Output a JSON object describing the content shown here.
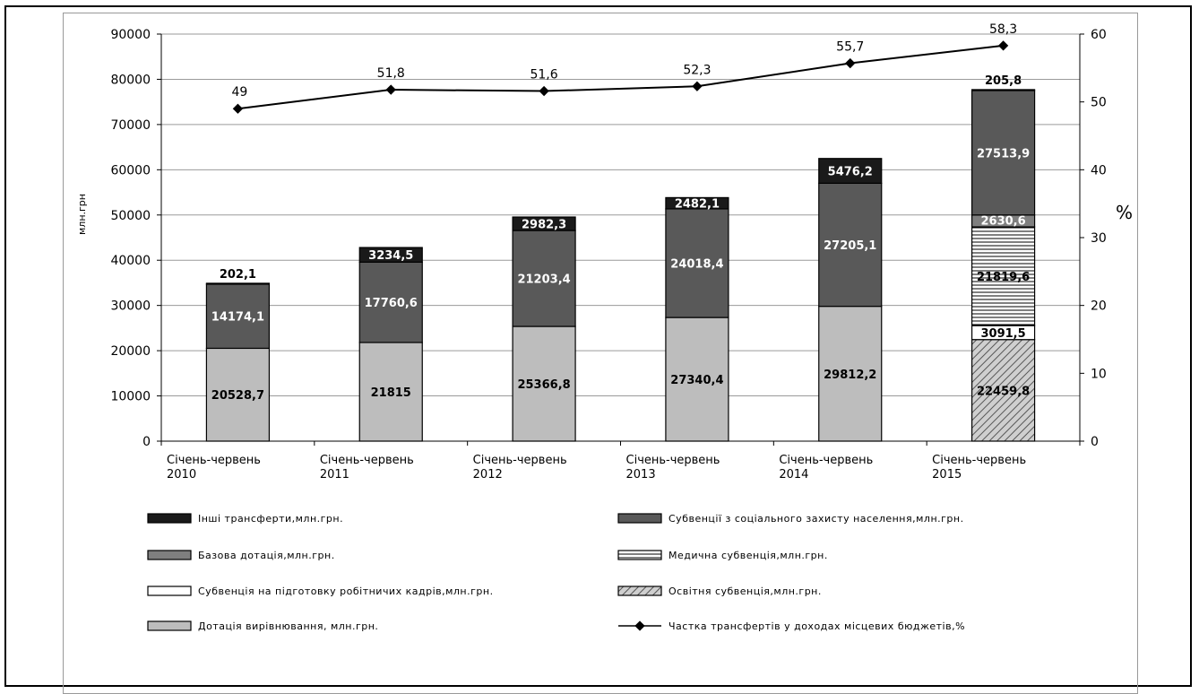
{
  "chart_data": {
    "type": "bar",
    "stacked": true,
    "ylabel": "млн.грн",
    "y2label": "%",
    "ylim": [
      0,
      90000
    ],
    "y2lim": [
      0,
      60
    ],
    "yticks": [
      "0",
      "10000",
      "20000",
      "30000",
      "40000",
      "50000",
      "60000",
      "70000",
      "80000",
      "90000"
    ],
    "y2ticks": [
      "0",
      "10",
      "20",
      "30",
      "40",
      "50",
      "60"
    ],
    "categories": [
      [
        "Січень-червень",
        "2010"
      ],
      [
        "Січень-червень",
        "2011"
      ],
      [
        "Січень-червень",
        "2012"
      ],
      [
        "Січень-червень",
        "2013"
      ],
      [
        "Січень-червень",
        "2014"
      ],
      [
        "Січень-червень",
        "2015"
      ]
    ],
    "series": [
      {
        "name": "Дотація вирівнювання, млн.грн.",
        "key": "equalization",
        "color": "#bdbdbd",
        "values": [
          20528.7,
          21815,
          25366.8,
          27340.4,
          29812.2,
          null
        ],
        "labels": [
          "20528,7",
          "21815",
          "25366,8",
          "27340,4",
          "29812,2",
          ""
        ]
      },
      {
        "name": "Освітня субвенція,млн.грн.",
        "key": "education",
        "color": "#bdbdbd",
        "pattern": "hatch",
        "values": [
          null,
          null,
          null,
          null,
          null,
          22459.8
        ],
        "labels": [
          "",
          "",
          "",
          "",
          "",
          "22459,8"
        ]
      },
      {
        "name": "Субвенція на підготовку робітничих кадрів,млн.грн.",
        "key": "workers",
        "color": "#ffffff",
        "values": [
          null,
          null,
          null,
          null,
          null,
          3091.5
        ],
        "labels": [
          "",
          "",
          "",
          "",
          "",
          "3091,5"
        ]
      },
      {
        "name": "Медична субвенція,млн.грн.",
        "key": "medical",
        "color": "#ffffff",
        "pattern": "hlines",
        "values": [
          null,
          null,
          null,
          null,
          null,
          21819.6
        ],
        "labels": [
          "",
          "",
          "",
          "",
          "",
          "21819,6"
        ]
      },
      {
        "name": "Базова дотація,млн.грн.",
        "key": "base",
        "color": "#7f7f7f",
        "values": [
          null,
          null,
          null,
          null,
          null,
          2630.6
        ],
        "labels": [
          "",
          "",
          "",
          "",
          "",
          "2630,6"
        ]
      },
      {
        "name": "Субвенції з соціального захисту населення,млн.грн.",
        "key": "social",
        "color": "#595959",
        "values": [
          14174.1,
          17760.6,
          21203.4,
          24018.4,
          27205.1,
          27513.9
        ],
        "labels": [
          "14174,1",
          "17760,6",
          "21203,4",
          "24018,4",
          "27205,1",
          "27513,9"
        ]
      },
      {
        "name": "Інші трансферти,млн.грн.",
        "key": "other",
        "color": "#1a1a1a",
        "values": [
          202.1,
          3234.5,
          2982.3,
          2482.1,
          5476.2,
          205.8
        ],
        "labels": [
          "202,1",
          "3234,5",
          "2982,3",
          "2482,1",
          "5476,2",
          "205,8"
        ]
      }
    ],
    "line": {
      "name": "Частка трансфертів у доходах місцевих бюджетів,%",
      "values": [
        49,
        51.8,
        51.6,
        52.3,
        55.7,
        58.3
      ],
      "labels": [
        "49",
        "51,8",
        "51,6",
        "52,3",
        "55,7",
        "58,3"
      ]
    },
    "legend": [
      {
        "label": "Інші трансферти,млн.грн.",
        "swatch": "other"
      },
      {
        "label": "Субвенції з соціального захисту населення,млн.грн.",
        "swatch": "social"
      },
      {
        "label": "Базова дотація,млн.грн.",
        "swatch": "base"
      },
      {
        "label": "Медична субвенція,млн.грн.",
        "swatch": "medical"
      },
      {
        "label": "Субвенція на підготовку робітничих кадрів,млн.грн.",
        "swatch": "workers"
      },
      {
        "label": "Освітня субвенція,млн.грн.",
        "swatch": "education"
      },
      {
        "label": "Дотація вирівнювання, млн.грн.",
        "swatch": "equalization"
      },
      {
        "label": "Частка трансфертів у доходах місцевих бюджетів,%",
        "swatch": "line"
      }
    ]
  }
}
